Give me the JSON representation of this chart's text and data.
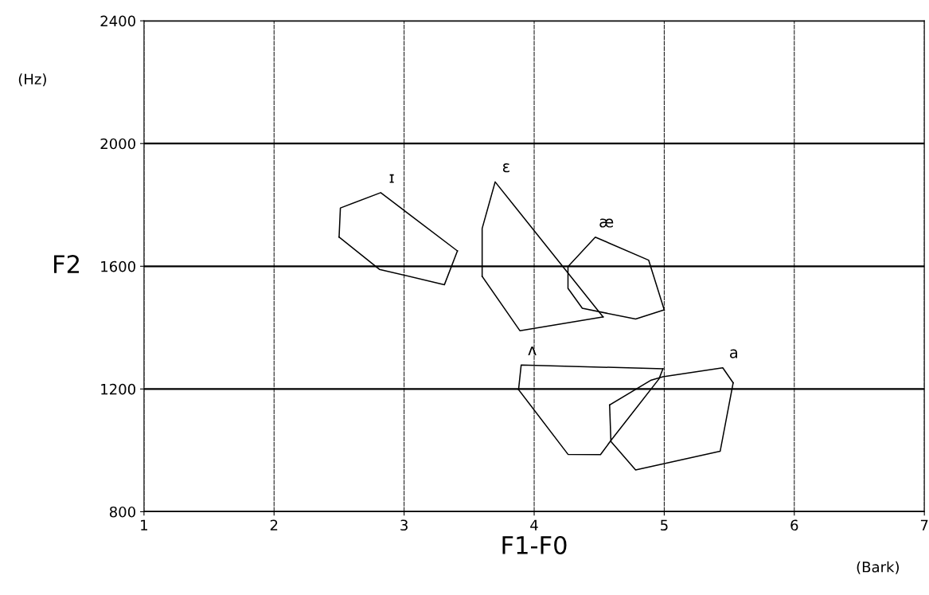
{
  "chart_data": {
    "type": "line",
    "xlabel": "F1-F0",
    "ylabel": "F2",
    "xlim": [
      1,
      7
    ],
    "ylim": [
      800,
      2400
    ],
    "xticks": [
      1,
      2,
      3,
      4,
      5,
      6,
      7
    ],
    "yticks": [
      800,
      1200,
      1600,
      2000,
      2400
    ],
    "grid": true,
    "marker": "none",
    "line_style": "solid",
    "series": [
      {
        "name": "ɪ",
        "color": "#000000",
        "x": [
          2.5,
          2.51,
          2.82,
          3.41
        ],
        "values": [
          1695,
          1790,
          1840,
          1650
        ]
      },
      {
        "color": "#000000",
        "x": [
          2.5,
          2.81,
          3.31,
          3.41
        ],
        "values": [
          1695,
          1590,
          1540,
          1650
        ]
      },
      {
        "name": "ɛ",
        "color": "#000000",
        "x": [
          3.6,
          3.6,
          3.7,
          4.53
        ],
        "values": [
          1567,
          1723,
          1875,
          1435
        ]
      },
      {
        "color": "#000000",
        "x": [
          3.6,
          3.89,
          4.53
        ],
        "values": [
          1567,
          1390,
          1435
        ]
      },
      {
        "name": "æ",
        "color": "#000000",
        "x": [
          4.26,
          4.47,
          4.88,
          5.0
        ],
        "values": [
          1599,
          1695,
          1620,
          1458
        ]
      },
      {
        "color": "#000000",
        "x": [
          4.26,
          4.26,
          4.37,
          4.78,
          5.0
        ],
        "values": [
          1599,
          1528,
          1463,
          1428,
          1458
        ]
      },
      {
        "name": "ʌ",
        "color": "#000000",
        "x": [
          3.88,
          3.9,
          4.99
        ],
        "values": [
          1198,
          1278,
          1266
        ]
      },
      {
        "color": "#000000",
        "x": [
          3.88,
          4.26,
          4.51,
          4.59,
          4.96,
          4.99
        ],
        "values": [
          1198,
          987,
          986,
          1032,
          1233,
          1266
        ]
      },
      {
        "name": "a",
        "color": "#000000",
        "x": [
          4.58,
          4.9,
          4.99,
          5.45,
          5.53
        ],
        "values": [
          1148,
          1229,
          1240,
          1269,
          1220
        ]
      },
      {
        "color": "#000000",
        "x": [
          4.58,
          4.59,
          4.78,
          5.43,
          5.53
        ],
        "values": [
          1148,
          1029,
          936,
          997,
          1220
        ]
      }
    ],
    "annotations": [
      "(Hz)",
      "(Bark)"
    ]
  }
}
